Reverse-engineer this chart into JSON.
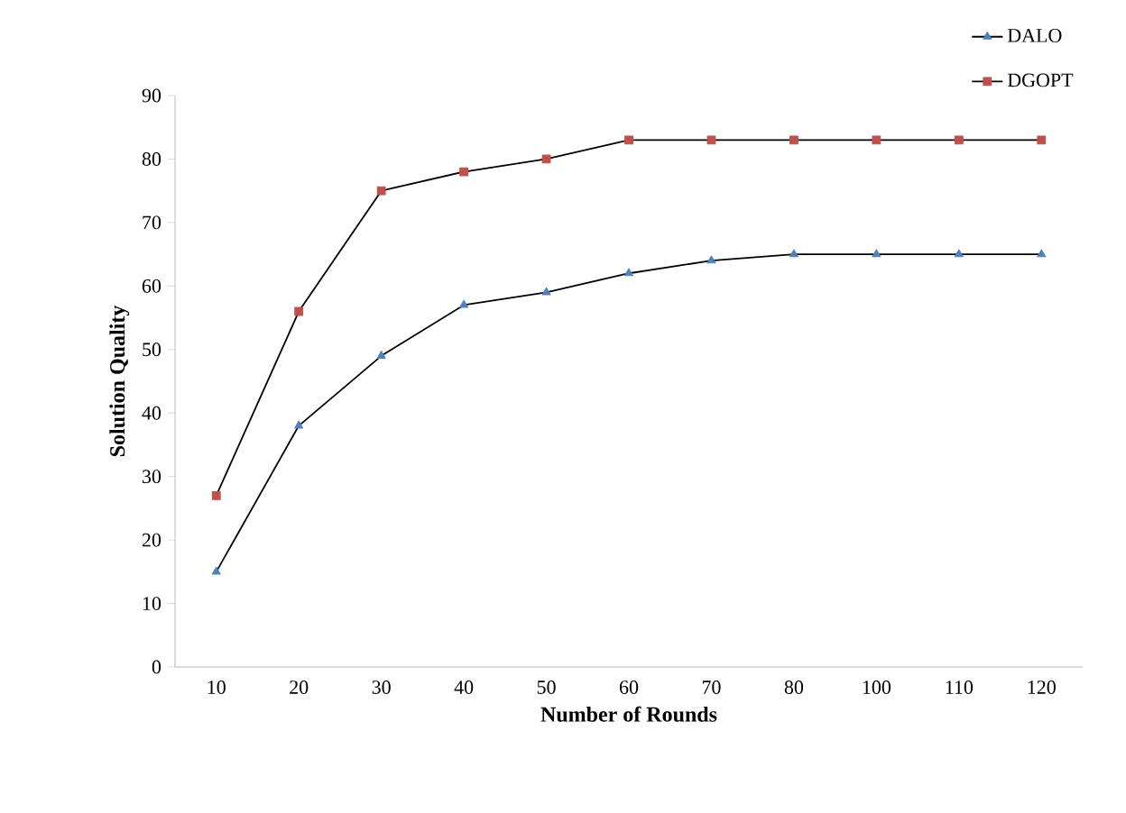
{
  "chart_data": {
    "type": "line",
    "xlabel": "Number of Rounds",
    "ylabel": "Solution Quality",
    "categories": [
      "10",
      "20",
      "30",
      "40",
      "50",
      "60",
      "70",
      "80",
      "100",
      "110",
      "120"
    ],
    "series": [
      {
        "name": "DALO",
        "color": "#4f81bd",
        "marker": "triangle",
        "values": [
          15,
          38,
          49,
          57,
          59,
          62,
          64,
          65,
          65,
          65,
          65
        ]
      },
      {
        "name": "DGOPT",
        "color": "#c0504d",
        "marker": "square",
        "values": [
          27,
          56,
          75,
          78,
          80,
          83,
          83,
          83,
          83,
          83,
          83
        ]
      }
    ],
    "ylim": [
      0,
      90
    ],
    "yticks": [
      0,
      10,
      20,
      30,
      40,
      50,
      60,
      70,
      80,
      90
    ],
    "grid": false,
    "legend": "top right"
  }
}
